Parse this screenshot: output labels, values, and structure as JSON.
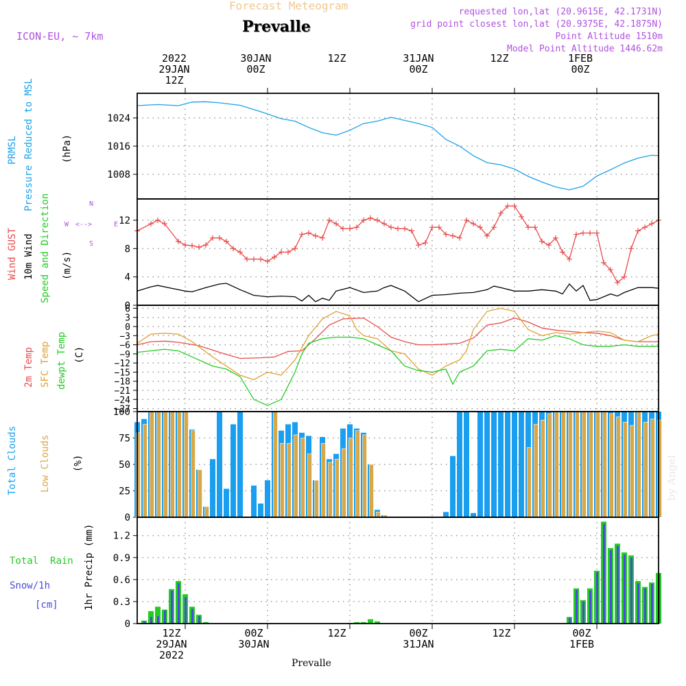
{
  "header": {
    "app_title": "Forecast Meteogram",
    "location": "Prevalle",
    "model": "ICON-EU, ~ 7km",
    "requested": "requested lon,lat (20.9615E, 42.1731N)",
    "grid_point": "grid point closest lon,lat (20.9375E, 42.1875N)",
    "point_altitude": "Point Altitude 1510m",
    "model_altitude": "Model Point Altitude 1446.62m",
    "watermark": "by Angel",
    "footer_location": "Prevalle"
  },
  "top_axis": [
    {
      "l1": "2022",
      "l2": "29JAN",
      "l3": "12Z"
    },
    {
      "l1": "",
      "l2": "30JAN",
      "l3": "00Z"
    },
    {
      "l1": "",
      "l2": "",
      "l3": "12Z"
    },
    {
      "l1": "",
      "l2": "31JAN",
      "l3": "00Z"
    },
    {
      "l1": "",
      "l2": "",
      "l3": "12Z"
    },
    {
      "l1": "",
      "l2": "1FEB",
      "l3": "00Z"
    }
  ],
  "bottom_axis": [
    {
      "l1": "12Z",
      "l2": "29JAN",
      "l3": "2022"
    },
    {
      "l1": "00Z",
      "l2": "30JAN",
      "l3": ""
    },
    {
      "l1": "12Z",
      "l2": "",
      "l3": ""
    },
    {
      "l1": "00Z",
      "l2": "31JAN",
      "l3": ""
    },
    {
      "l1": "12Z",
      "l2": "",
      "l3": ""
    },
    {
      "l1": "00Z",
      "l2": "1FEB",
      "l3": ""
    }
  ],
  "panel_labels": {
    "pressure": {
      "a": "PRMSL",
      "b": "Pressure Reduced to MSL",
      "unit": "(hPa)"
    },
    "wind": {
      "a": "Wind GUST",
      "b": "10m Wind",
      "c": "Speed and Direction",
      "unit": "(m/s)",
      "compass_n": "N",
      "compass_s": "S",
      "compass_w": "W",
      "compass_e": "E"
    },
    "temp": {
      "a": "2m Temp",
      "b": "SFC Temp",
      "c": "dewpt Temp",
      "unit": "(C)"
    },
    "clouds": {
      "a": "Total Clouds",
      "b": "Low Clouds",
      "unit": "(%)"
    },
    "precip": {
      "a": "Total",
      "a2": "Rain",
      "b": "Snow/1h",
      "c": "[cm]",
      "unit": "1hr Precip (mm)"
    }
  },
  "colors": {
    "pressure": "#1aa0e8",
    "gust": "#e84a4a",
    "wind": "#000000",
    "temp2m": "#e84a4a",
    "sfctemp": "#e0a030",
    "dewpt": "#22cc22",
    "total_clouds": "#1a9ff0",
    "low_clouds": "#d8a848",
    "rain": "#22cc22",
    "snow": "#4a4ae0",
    "title": "#f0c890",
    "meta": "#b050e0"
  },
  "chart_data": [
    {
      "type": "line",
      "title": "PRMSL Pressure Reduced to MSL",
      "ylabel": "(hPa)",
      "x_unit": "hours since 2022-01-29 00Z",
      "xlim": [
        5,
        81
      ],
      "ylim": [
        1001,
        1031
      ],
      "yticks": [
        1008,
        1016,
        1024
      ],
      "grid": true,
      "series": [
        {
          "name": "PRMSL",
          "x": [
            5,
            8,
            11,
            13,
            15,
            17,
            20,
            23,
            26,
            28,
            30,
            32,
            34,
            36,
            38,
            40,
            42,
            44,
            46,
            48,
            50,
            52,
            54,
            56,
            58,
            60,
            62,
            64,
            66,
            68,
            70,
            72,
            74,
            76,
            78,
            80,
            81
          ],
          "y": [
            1027.5,
            1027.8,
            1027.5,
            1028.5,
            1028.6,
            1028.3,
            1027.6,
            1025.8,
            1023.8,
            1023.1,
            1021.3,
            1019.8,
            1019.1,
            1020.5,
            1022.4,
            1023.1,
            1024.2,
            1023.3,
            1022.4,
            1021.3,
            1017.9,
            1016.0,
            1013.3,
            1011.3,
            1010.7,
            1009.5,
            1007.4,
            1005.8,
            1004.4,
            1003.6,
            1004.6,
            1007.5,
            1009.3,
            1011.2,
            1012.6,
            1013.4,
            1013.3
          ]
        }
      ]
    },
    {
      "type": "line",
      "title": "Wind GUST / 10m Wind Speed and Direction",
      "ylabel": "(m/s)",
      "xlim": [
        5,
        81
      ],
      "ylim": [
        0,
        15
      ],
      "yticks": [
        0,
        4,
        8,
        12
      ],
      "series": [
        {
          "name": "Wind GUST",
          "x": [
            5,
            7,
            8,
            9,
            11,
            12,
            13,
            14,
            15,
            16,
            17,
            18,
            19,
            20,
            21,
            22,
            23,
            24,
            25,
            26,
            27,
            28,
            29,
            30,
            31,
            32,
            33,
            34,
            35,
            36,
            37,
            38,
            39,
            40,
            41,
            42,
            43,
            44,
            45,
            46,
            47,
            48,
            49,
            50,
            51,
            52,
            53,
            54,
            55,
            56,
            57,
            58,
            59,
            60,
            61,
            62,
            63,
            64,
            65,
            66,
            67,
            68,
            69,
            70,
            71,
            72,
            73,
            74,
            75,
            76,
            77,
            78,
            79,
            80,
            81
          ],
          "y": [
            10.5,
            11.5,
            12.0,
            11.5,
            9.0,
            8.5,
            8.4,
            8.2,
            8.5,
            9.5,
            9.5,
            9.0,
            8.0,
            7.5,
            6.5,
            6.5,
            6.5,
            6.2,
            6.8,
            7.5,
            7.5,
            8.0,
            10.0,
            10.2,
            9.8,
            9.5,
            12.0,
            11.5,
            10.8,
            10.8,
            11.0,
            12.0,
            12.3,
            12.0,
            11.5,
            11.0,
            10.8,
            10.8,
            10.5,
            8.5,
            8.8,
            11.0,
            11.0,
            10.0,
            9.8,
            9.5,
            12.0,
            11.5,
            11.0,
            9.8,
            11.0,
            13.0,
            14.0,
            14.0,
            12.5,
            11.0,
            11.0,
            9.0,
            8.5,
            9.5,
            7.5,
            6.5,
            10.0,
            10.2,
            10.2,
            10.2,
            6.0,
            5.0,
            3.2,
            4.0,
            8.0,
            10.5,
            11.0,
            11.5,
            12.0
          ]
        },
        {
          "name": "10m Wind",
          "x": [
            5,
            7,
            8,
            10,
            12,
            13,
            15,
            17,
            18,
            20,
            22,
            24,
            26,
            28,
            29,
            30,
            31,
            32,
            33,
            34,
            36,
            38,
            40,
            41,
            42,
            44,
            46,
            48,
            50,
            52,
            54,
            56,
            57,
            58,
            60,
            62,
            64,
            66,
            67,
            68,
            69,
            70,
            71,
            72,
            73,
            74,
            75,
            76,
            78,
            80,
            81
          ],
          "y": [
            2.0,
            2.6,
            2.8,
            2.4,
            2.0,
            1.9,
            2.5,
            3.0,
            3.1,
            2.2,
            1.4,
            1.2,
            1.3,
            1.2,
            0.6,
            1.4,
            0.5,
            1.0,
            0.7,
            2.0,
            2.5,
            1.8,
            2.0,
            2.5,
            2.8,
            2.0,
            0.5,
            1.4,
            1.5,
            1.7,
            1.8,
            2.2,
            2.7,
            2.5,
            2.0,
            2.0,
            2.2,
            2.0,
            1.6,
            3.0,
            2.0,
            2.8,
            0.7,
            0.8,
            1.2,
            1.6,
            1.3,
            1.8,
            2.5,
            2.5,
            2.4
          ]
        }
      ]
    },
    {
      "type": "line",
      "title": "2m Temp / SFC Temp / dewpt Temp",
      "ylabel": "(C)",
      "xlim": [
        5,
        81
      ],
      "ylim": [
        -28,
        7
      ],
      "yticks": [
        6,
        3,
        0,
        -3,
        -6,
        -9,
        -12,
        -15,
        -18,
        -21,
        -24,
        -27
      ],
      "series": [
        {
          "name": "2m Temp",
          "x": [
            5,
            7,
            9,
            11,
            14,
            17,
            20,
            23,
            25,
            27,
            29,
            31,
            33,
            35,
            38,
            40,
            42,
            44,
            46,
            48,
            50,
            52,
            54,
            56,
            58,
            60,
            62,
            64,
            66,
            68,
            70,
            72,
            74,
            76,
            78,
            80,
            81
          ],
          "y": [
            -6.0,
            -5.0,
            -4.8,
            -5.2,
            -6.3,
            -8.5,
            -10.5,
            -10.3,
            -10.0,
            -8.2,
            -8.0,
            -4.0,
            0.5,
            2.5,
            2.8,
            0.0,
            -3.5,
            -5.0,
            -6.0,
            -6.0,
            -5.8,
            -5.5,
            -3.8,
            0.5,
            1.2,
            2.8,
            1.5,
            -0.5,
            -1.2,
            -1.6,
            -2.0,
            -2.2,
            -3.0,
            -4.5,
            -5.0,
            -5.0,
            -5.0
          ]
        },
        {
          "name": "SFC Temp",
          "x": [
            5,
            7,
            9,
            11,
            13,
            16,
            18,
            20,
            22,
            24,
            26,
            28,
            30,
            32,
            34,
            36,
            37,
            38,
            40,
            42,
            44,
            46,
            48,
            50,
            52,
            53,
            54,
            56,
            58,
            60,
            62,
            64,
            66,
            68,
            70,
            72,
            74,
            76,
            78,
            80,
            81
          ],
          "y": [
            -5.5,
            -2.5,
            -2.2,
            -2.5,
            -5.0,
            -10.0,
            -13.0,
            -16.0,
            -17.5,
            -15.0,
            -16.0,
            -11.0,
            -3.0,
            2.5,
            5.0,
            3.5,
            -1.0,
            -3.0,
            -4.0,
            -8.0,
            -9.0,
            -14.0,
            -16.0,
            -13.0,
            -11.0,
            -8.0,
            -1.0,
            5.0,
            6.0,
            5.0,
            -1.0,
            -3.0,
            -2.0,
            -2.5,
            -2.0,
            -1.5,
            -2.0,
            -4.5,
            -5.0,
            -3.0,
            -2.5
          ]
        },
        {
          "name": "dewpt Temp",
          "x": [
            5,
            7,
            9,
            11,
            13,
            16,
            18,
            20,
            22,
            24,
            26,
            28,
            29,
            30,
            32,
            34,
            36,
            38,
            40,
            42,
            44,
            46,
            48,
            50,
            51,
            52,
            54,
            56,
            58,
            60,
            62,
            64,
            66,
            68,
            70,
            72,
            74,
            76,
            78,
            80,
            81
          ],
          "y": [
            -8.5,
            -8.0,
            -7.5,
            -8.0,
            -10.0,
            -13.0,
            -14.0,
            -16.5,
            -24.0,
            -26.0,
            -24.0,
            -15.0,
            -9.0,
            -5.5,
            -4.0,
            -3.5,
            -3.5,
            -4.0,
            -6.0,
            -8.0,
            -13.0,
            -14.5,
            -15.0,
            -14.0,
            -19.0,
            -15.0,
            -13.0,
            -8.0,
            -7.5,
            -8.0,
            -4.0,
            -4.5,
            -3.0,
            -4.0,
            -6.0,
            -6.5,
            -6.5,
            -6.0,
            -6.5,
            -6.5,
            -6.5
          ]
        }
      ]
    },
    {
      "type": "bar",
      "title": "Total Clouds / Low Clouds",
      "ylabel": "(%)",
      "xlim": [
        5,
        81
      ],
      "ylim": [
        0,
        100
      ],
      "yticks": [
        0,
        25,
        50,
        75,
        100
      ],
      "x": [
        5,
        6,
        7,
        8,
        9,
        10,
        11,
        12,
        13,
        14,
        15,
        16,
        17,
        18,
        19,
        20,
        21,
        22,
        23,
        24,
        25,
        26,
        27,
        28,
        29,
        30,
        31,
        32,
        33,
        34,
        35,
        36,
        37,
        38,
        39,
        40,
        41,
        42,
        43,
        44,
        45,
        46,
        47,
        48,
        49,
        50,
        51,
        52,
        53,
        54,
        55,
        56,
        57,
        58,
        59,
        60,
        61,
        62,
        63,
        64,
        65,
        66,
        67,
        68,
        69,
        70,
        71,
        72,
        73,
        74,
        75,
        76,
        77,
        78,
        79,
        80,
        81
      ],
      "series": [
        {
          "name": "Total Clouds",
          "values": [
            90,
            93,
            100,
            100,
            100,
            100,
            100,
            100,
            83,
            45,
            10,
            55,
            100,
            27,
            88,
            100,
            0,
            30,
            13,
            35,
            100,
            82,
            88,
            90,
            80,
            77,
            35,
            76,
            55,
            60,
            84,
            88,
            84,
            80,
            50,
            7,
            2,
            0,
            0,
            0,
            0,
            0,
            0,
            0,
            0,
            5,
            58,
            100,
            100,
            4,
            100,
            100,
            100,
            100,
            100,
            100,
            100,
            100,
            100,
            100,
            100,
            100,
            100,
            100,
            100,
            100,
            100,
            100,
            100,
            100,
            100,
            100,
            100,
            100,
            100,
            100,
            100
          ]
        },
        {
          "name": "Low Clouds",
          "values": [
            80,
            88,
            100,
            100,
            100,
            100,
            100,
            100,
            82,
            45,
            10,
            0,
            0,
            0,
            0,
            0,
            0,
            0,
            0,
            0,
            100,
            70,
            70,
            78,
            75,
            60,
            35,
            70,
            52,
            55,
            65,
            75,
            82,
            78,
            50,
            5,
            2,
            0,
            0,
            0,
            0,
            0,
            0,
            0,
            0,
            0,
            0,
            0,
            0,
            0,
            0,
            0,
            0,
            0,
            0,
            0,
            0,
            66,
            88,
            92,
            98,
            100,
            100,
            100,
            100,
            100,
            100,
            100,
            100,
            98,
            95,
            90,
            87,
            100,
            90,
            93,
            92
          ]
        }
      ]
    },
    {
      "type": "bar",
      "title": "Total Rain / Snow/1h",
      "ylabel": "1hr Precip (mm)",
      "xlim": [
        5,
        81
      ],
      "ylim": [
        0,
        1.45
      ],
      "yticks": [
        0,
        0.3,
        0.6,
        0.9,
        1.2
      ],
      "x": [
        6,
        7,
        8,
        9,
        10,
        11,
        12,
        13,
        14,
        15,
        36,
        37,
        38,
        39,
        40,
        68,
        69,
        70,
        71,
        72,
        73,
        74,
        75,
        76,
        77,
        78,
        79,
        80,
        81
      ],
      "series": [
        {
          "name": "Total Rain",
          "values": [
            0.04,
            0.17,
            0.23,
            0.19,
            0.47,
            0.58,
            0.4,
            0.23,
            0.12,
            0.02,
            0.01,
            0.02,
            0.02,
            0.06,
            0.03,
            0.09,
            0.48,
            0.32,
            0.48,
            0.72,
            1.39,
            1.03,
            1.09,
            0.97,
            0.93,
            0.58,
            0.5,
            0.56,
            0.69
          ]
        },
        {
          "name": "Snow/1h",
          "values": [
            0.03,
            0.09,
            0.1,
            0.18,
            0.45,
            0.55,
            0.36,
            0.2,
            0.1,
            0.01,
            0,
            0,
            0,
            0,
            0,
            0.08,
            0.46,
            0.3,
            0.45,
            0.7,
            1.36,
            1.0,
            1.06,
            0.94,
            0.9,
            0.55,
            0.48,
            0.54,
            0.68
          ]
        }
      ]
    }
  ]
}
